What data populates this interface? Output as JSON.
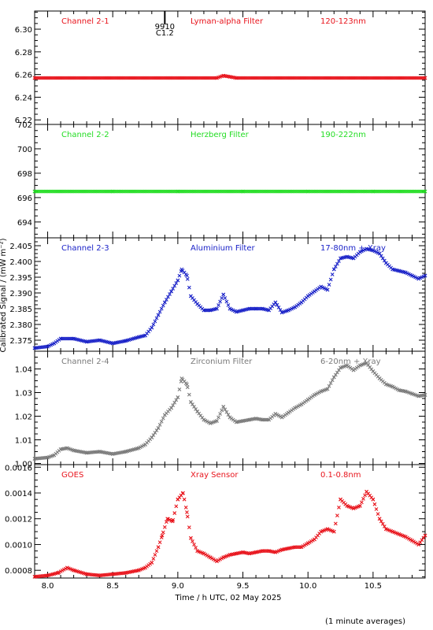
{
  "figure": {
    "y_axis_label": "Calibrated Signal / (mW m⁻²)",
    "x_axis_label": "Time / h UTC, 02 May 2025",
    "footnote": "(1 minute averages)",
    "event_marker": {
      "line1": "9910",
      "line2": "C1.2",
      "x_hours": 8.9
    }
  },
  "colors": {
    "red": "#e8141c",
    "green": "#22dd22",
    "blue": "#1a22c8",
    "gray": "#7a7a7a",
    "axis": "#000000"
  },
  "chart_data": [
    {
      "type": "scatter",
      "labels": {
        "channel": "Channel 2-1",
        "filter": "Lyman-alpha Filter",
        "band": "120-123nm"
      },
      "color": "red",
      "xlim": [
        7.9,
        10.9
      ],
      "ylim": [
        6.216,
        6.316
      ],
      "x_ticks": [],
      "y_ticks": [
        "6.22",
        "6.24",
        "6.26",
        "6.28",
        "6.30"
      ],
      "x": [
        7.9,
        9.3,
        9.35,
        9.4,
        9.45,
        10.9
      ],
      "y": [
        6.257,
        6.257,
        6.259,
        6.258,
        6.257,
        6.257
      ]
    },
    {
      "type": "scatter",
      "labels": {
        "channel": "Channel 2-2",
        "filter": "Herzberg Filter",
        "band": "190-222nm"
      },
      "color": "green",
      "xlim": [
        7.9,
        10.9
      ],
      "ylim": [
        692.7,
        702.0
      ],
      "x_ticks": [],
      "y_ticks": [
        "694",
        "696",
        "698",
        "700",
        "702"
      ],
      "x": [
        7.9,
        8.5,
        9.0,
        9.5,
        10.0,
        10.5,
        10.9
      ],
      "y": [
        696.5,
        696.5,
        696.5,
        696.5,
        696.5,
        696.5,
        696.5
      ]
    },
    {
      "type": "scatter",
      "labels": {
        "channel": "Channel 2-3",
        "filter": "Aluminium Filter",
        "band": "17-80nm + Xray"
      },
      "color": "blue",
      "xlim": [
        7.9,
        10.9
      ],
      "ylim": [
        2.3715,
        2.4075
      ],
      "x_ticks": [],
      "y_ticks": [
        "2.375",
        "2.380",
        "2.385",
        "2.390",
        "2.395",
        "2.400",
        "2.405"
      ],
      "x": [
        7.9,
        8.0,
        8.05,
        8.1,
        8.2,
        8.3,
        8.4,
        8.5,
        8.6,
        8.7,
        8.75,
        8.8,
        8.85,
        8.9,
        8.95,
        9.0,
        9.03,
        9.07,
        9.1,
        9.15,
        9.2,
        9.25,
        9.3,
        9.35,
        9.4,
        9.45,
        9.5,
        9.55,
        9.6,
        9.65,
        9.7,
        9.75,
        9.8,
        9.85,
        9.9,
        9.95,
        10.0,
        10.05,
        10.1,
        10.15,
        10.2,
        10.25,
        10.3,
        10.35,
        10.4,
        10.45,
        10.5,
        10.55,
        10.6,
        10.65,
        10.7,
        10.75,
        10.8,
        10.85,
        10.9
      ],
      "y": [
        2.3725,
        2.373,
        2.374,
        2.3755,
        2.3755,
        2.3745,
        2.375,
        2.374,
        2.3748,
        2.376,
        2.3765,
        2.379,
        2.383,
        2.387,
        2.3905,
        2.394,
        2.3975,
        2.3955,
        2.389,
        2.3865,
        2.3845,
        2.3845,
        2.385,
        2.3895,
        2.385,
        2.384,
        2.3845,
        2.385,
        2.385,
        2.385,
        2.3845,
        2.387,
        2.3838,
        2.3845,
        2.3855,
        2.387,
        2.389,
        2.3905,
        2.392,
        2.391,
        2.3975,
        2.401,
        2.4015,
        2.401,
        2.403,
        2.404,
        2.4035,
        2.4025,
        2.3995,
        2.3975,
        2.397,
        2.3965,
        2.3955,
        2.3945,
        2.3955
      ]
    },
    {
      "type": "scatter",
      "labels": {
        "channel": "Channel 2-4",
        "filter": "Zirconium Filter",
        "band": "6-20nm + Xray"
      },
      "color": "gray",
      "xlim": [
        7.9,
        10.9
      ],
      "ylim": [
        0.9995,
        1.0475
      ],
      "x_ticks": [],
      "y_ticks": [
        "1.00",
        "1.01",
        "1.02",
        "1.03",
        "1.04"
      ],
      "x": [
        7.9,
        8.0,
        8.05,
        8.1,
        8.15,
        8.2,
        8.3,
        8.4,
        8.5,
        8.6,
        8.7,
        8.75,
        8.8,
        8.85,
        8.9,
        8.95,
        9.0,
        9.03,
        9.07,
        9.1,
        9.15,
        9.2,
        9.25,
        9.3,
        9.35,
        9.4,
        9.45,
        9.5,
        9.55,
        9.6,
        9.65,
        9.7,
        9.75,
        9.8,
        9.85,
        9.9,
        9.95,
        10.0,
        10.05,
        10.1,
        10.15,
        10.2,
        10.25,
        10.3,
        10.35,
        10.4,
        10.45,
        10.5,
        10.55,
        10.6,
        10.65,
        10.7,
        10.75,
        10.8,
        10.85,
        10.9
      ],
      "y": [
        1.002,
        1.0025,
        1.0035,
        1.006,
        1.0065,
        1.0055,
        1.0045,
        1.005,
        1.004,
        1.005,
        1.0065,
        1.008,
        1.011,
        1.015,
        1.0205,
        1.0235,
        1.028,
        1.036,
        1.0335,
        1.026,
        1.022,
        1.0185,
        1.017,
        1.018,
        1.024,
        1.0195,
        1.0175,
        1.018,
        1.0185,
        1.019,
        1.0185,
        1.0185,
        1.021,
        1.0195,
        1.0215,
        1.0235,
        1.025,
        1.027,
        1.029,
        1.0305,
        1.0315,
        1.0365,
        1.0405,
        1.0415,
        1.0395,
        1.0415,
        1.0425,
        1.039,
        1.036,
        1.0335,
        1.0325,
        1.031,
        1.0305,
        1.0295,
        1.0285,
        1.029
      ]
    },
    {
      "type": "scatter",
      "labels": {
        "channel": "GOES",
        "filter": "Xray Sensor",
        "band": "0.1-0.8nm"
      },
      "color": "red",
      "xlim": [
        7.9,
        10.9
      ],
      "ylim": [
        0.00074,
        0.00162
      ],
      "x_ticks": [
        "8.0",
        "8.5",
        "9.0",
        "9.5",
        "10.0",
        "10.5"
      ],
      "y_ticks": [
        "0.0008",
        "0.0010",
        "0.0012",
        "0.0014",
        "0.0016"
      ],
      "x": [
        7.9,
        8.0,
        8.08,
        8.15,
        8.2,
        8.3,
        8.4,
        8.5,
        8.6,
        8.7,
        8.75,
        8.8,
        8.85,
        8.88,
        8.92,
        8.96,
        9.0,
        9.04,
        9.07,
        9.1,
        9.15,
        9.2,
        9.25,
        9.3,
        9.35,
        9.4,
        9.45,
        9.5,
        9.55,
        9.6,
        9.65,
        9.7,
        9.75,
        9.8,
        9.85,
        9.9,
        9.95,
        10.0,
        10.05,
        10.1,
        10.15,
        10.2,
        10.25,
        10.3,
        10.35,
        10.4,
        10.45,
        10.5,
        10.55,
        10.6,
        10.65,
        10.7,
        10.75,
        10.8,
        10.85,
        10.9
      ],
      "y": [
        0.00075,
        0.00076,
        0.00078,
        0.00082,
        0.0008,
        0.00077,
        0.00076,
        0.00077,
        0.00078,
        0.0008,
        0.00082,
        0.00086,
        0.00098,
        0.00107,
        0.0012,
        0.00118,
        0.00135,
        0.0014,
        0.00125,
        0.00105,
        0.00095,
        0.00093,
        0.0009,
        0.00087,
        0.0009,
        0.00092,
        0.00093,
        0.00094,
        0.00093,
        0.00094,
        0.00095,
        0.00095,
        0.00094,
        0.00096,
        0.00097,
        0.00098,
        0.00098,
        0.00101,
        0.00104,
        0.0011,
        0.00112,
        0.0011,
        0.00135,
        0.0013,
        0.00128,
        0.0013,
        0.00141,
        0.00135,
        0.0012,
        0.00112,
        0.0011,
        0.00108,
        0.00106,
        0.00103,
        0.001,
        0.00107
      ]
    }
  ]
}
